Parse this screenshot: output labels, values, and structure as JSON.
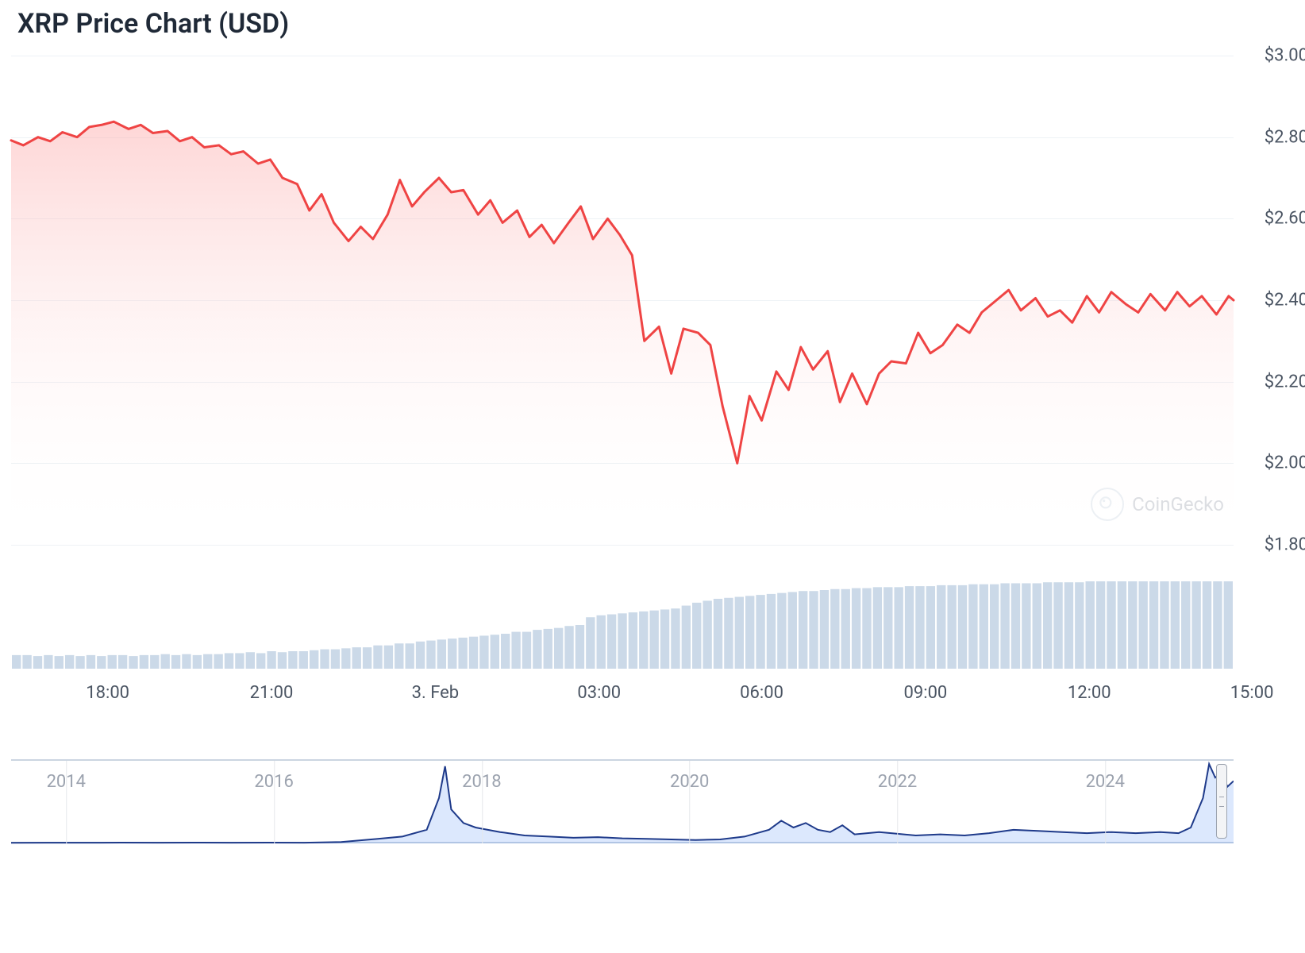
{
  "title": "XRP Price Chart (USD)",
  "watermark": "CoinGecko",
  "main_chart": {
    "type": "area",
    "line_color": "#ef4444",
    "line_width": 3,
    "fill_top_color": "rgba(252,165,165,0.45)",
    "fill_bottom_color": "rgba(255,255,255,0.0)",
    "background_color": "#ffffff",
    "grid_color": "#eef2f6",
    "ylim": [
      1.8,
      3.0
    ],
    "yticks": [
      1.8,
      2.0,
      2.2,
      2.4,
      2.6,
      2.8,
      3.0
    ],
    "ytick_labels": [
      "$1.80",
      "$2.00",
      "$2.20",
      "$2.40",
      "$2.60",
      "$2.80",
      "$3.00"
    ],
    "x_ticks_pct": [
      7.9,
      21.3,
      34.7,
      48.1,
      61.4,
      74.8,
      88.2,
      101.5
    ],
    "x_tick_labels": [
      "18:00",
      "21:00",
      "3. Feb",
      "03:00",
      "06:00",
      "09:00",
      "12:00",
      "15:00"
    ],
    "data": [
      [
        0.0,
        2.792
      ],
      [
        1.0,
        2.78
      ],
      [
        2.2,
        2.8
      ],
      [
        3.2,
        2.79
      ],
      [
        4.2,
        2.812
      ],
      [
        5.4,
        2.8
      ],
      [
        6.4,
        2.825
      ],
      [
        7.4,
        2.83
      ],
      [
        8.4,
        2.838
      ],
      [
        9.6,
        2.82
      ],
      [
        10.6,
        2.83
      ],
      [
        11.6,
        2.81
      ],
      [
        12.8,
        2.815
      ],
      [
        13.8,
        2.79
      ],
      [
        14.8,
        2.8
      ],
      [
        15.8,
        2.775
      ],
      [
        17.0,
        2.78
      ],
      [
        18.0,
        2.758
      ],
      [
        19.0,
        2.765
      ],
      [
        20.2,
        2.735
      ],
      [
        21.2,
        2.745
      ],
      [
        22.2,
        2.7
      ],
      [
        23.4,
        2.685
      ],
      [
        24.4,
        2.62
      ],
      [
        25.4,
        2.66
      ],
      [
        26.4,
        2.59
      ],
      [
        27.6,
        2.545
      ],
      [
        28.6,
        2.58
      ],
      [
        29.6,
        2.55
      ],
      [
        30.8,
        2.61
      ],
      [
        31.8,
        2.695
      ],
      [
        32.8,
        2.63
      ],
      [
        33.8,
        2.665
      ],
      [
        35.0,
        2.7
      ],
      [
        36.0,
        2.665
      ],
      [
        37.0,
        2.67
      ],
      [
        38.2,
        2.61
      ],
      [
        39.2,
        2.645
      ],
      [
        40.2,
        2.59
      ],
      [
        41.4,
        2.62
      ],
      [
        42.4,
        2.555
      ],
      [
        43.4,
        2.585
      ],
      [
        44.4,
        2.54
      ],
      [
        45.6,
        2.59
      ],
      [
        46.6,
        2.63
      ],
      [
        47.6,
        2.55
      ],
      [
        48.8,
        2.6
      ],
      [
        49.8,
        2.56
      ],
      [
        50.8,
        2.51
      ],
      [
        51.8,
        2.3
      ],
      [
        53.0,
        2.335
      ],
      [
        54.0,
        2.22
      ],
      [
        55.0,
        2.33
      ],
      [
        56.2,
        2.32
      ],
      [
        57.2,
        2.29
      ],
      [
        58.2,
        2.14
      ],
      [
        59.4,
        2.0
      ],
      [
        60.4,
        2.165
      ],
      [
        61.4,
        2.105
      ],
      [
        62.6,
        2.225
      ],
      [
        63.6,
        2.18
      ],
      [
        64.6,
        2.285
      ],
      [
        65.6,
        2.23
      ],
      [
        66.8,
        2.275
      ],
      [
        67.8,
        2.15
      ],
      [
        68.8,
        2.22
      ],
      [
        70.0,
        2.145
      ],
      [
        71.0,
        2.22
      ],
      [
        72.0,
        2.25
      ],
      [
        73.2,
        2.245
      ],
      [
        74.2,
        2.32
      ],
      [
        75.2,
        2.27
      ],
      [
        76.2,
        2.29
      ],
      [
        77.4,
        2.34
      ],
      [
        78.4,
        2.32
      ],
      [
        79.4,
        2.37
      ],
      [
        80.6,
        2.4
      ],
      [
        81.6,
        2.425
      ],
      [
        82.6,
        2.375
      ],
      [
        83.8,
        2.405
      ],
      [
        84.8,
        2.36
      ],
      [
        85.8,
        2.375
      ],
      [
        86.8,
        2.345
      ],
      [
        88.0,
        2.41
      ],
      [
        89.0,
        2.37
      ],
      [
        90.0,
        2.42
      ],
      [
        91.2,
        2.39
      ],
      [
        92.2,
        2.37
      ],
      [
        93.2,
        2.415
      ],
      [
        94.4,
        2.375
      ],
      [
        95.4,
        2.42
      ],
      [
        96.4,
        2.385
      ],
      [
        97.4,
        2.41
      ],
      [
        98.6,
        2.365
      ],
      [
        99.6,
        2.41
      ],
      [
        100.0,
        2.4
      ]
    ]
  },
  "volume_chart": {
    "type": "histogram",
    "bar_color": "#cbd9e8",
    "data": [
      14,
      14,
      13,
      14,
      13,
      14,
      13,
      14,
      13,
      14,
      14,
      13,
      14,
      14,
      15,
      14,
      15,
      14,
      15,
      15,
      16,
      16,
      17,
      16,
      18,
      17,
      18,
      18,
      19,
      20,
      20,
      21,
      22,
      22,
      24,
      24,
      26,
      26,
      28,
      29,
      30,
      31,
      32,
      33,
      34,
      35,
      36,
      38,
      38,
      40,
      41,
      42,
      44,
      45,
      53,
      55,
      56,
      57,
      58,
      59,
      60,
      61,
      62,
      65,
      68,
      70,
      72,
      73,
      74,
      75,
      76,
      77,
      78,
      79,
      80,
      80,
      81,
      82,
      82,
      83,
      83,
      84,
      84,
      84,
      85,
      85,
      85,
      86,
      86,
      86,
      87,
      87,
      87,
      88,
      88,
      88,
      88,
      89,
      89,
      89,
      89,
      90,
      90,
      90,
      90,
      90,
      90,
      90,
      90,
      90,
      90,
      90,
      90,
      90,
      90
    ]
  },
  "navigator": {
    "type": "area",
    "line_color": "#1e3a8a",
    "fill_color": "rgba(59,130,246,0.18)",
    "line_width": 2,
    "handle_pos_pct": 99.0,
    "year_ticks_pct": [
      4.5,
      21.5,
      38.5,
      55.5,
      72.5,
      89.5
    ],
    "year_labels": [
      "2014",
      "2016",
      "2018",
      "2020",
      "2022",
      "2024"
    ],
    "data": [
      [
        0,
        0.5
      ],
      [
        3,
        0.6
      ],
      [
        6,
        0.6
      ],
      [
        9,
        0.7
      ],
      [
        12,
        0.6
      ],
      [
        15,
        0.7
      ],
      [
        18,
        0.6
      ],
      [
        21,
        0.7
      ],
      [
        24,
        0.6
      ],
      [
        27,
        1.2
      ],
      [
        30,
        4.0
      ],
      [
        32,
        6.0
      ],
      [
        34,
        12.0
      ],
      [
        35,
        40.0
      ],
      [
        35.5,
        68.0
      ],
      [
        36,
        30.0
      ],
      [
        37,
        18.0
      ],
      [
        38,
        14.0
      ],
      [
        40,
        10.0
      ],
      [
        42,
        7.0
      ],
      [
        44,
        6.0
      ],
      [
        46,
        5.0
      ],
      [
        48,
        5.5
      ],
      [
        50,
        4.5
      ],
      [
        52,
        4.0
      ],
      [
        54,
        3.5
      ],
      [
        56,
        3.0
      ],
      [
        58,
        3.5
      ],
      [
        60,
        6.0
      ],
      [
        62,
        12.0
      ],
      [
        63,
        20.0
      ],
      [
        64,
        14.0
      ],
      [
        65,
        18.0
      ],
      [
        66,
        12.0
      ],
      [
        67,
        10.0
      ],
      [
        68,
        16.0
      ],
      [
        69,
        8.0
      ],
      [
        71,
        10.0
      ],
      [
        72,
        9.0
      ],
      [
        74,
        7.0
      ],
      [
        76,
        8.0
      ],
      [
        78,
        7.0
      ],
      [
        80,
        9.0
      ],
      [
        82,
        12.0
      ],
      [
        84,
        11.0
      ],
      [
        86,
        10.0
      ],
      [
        88,
        9.0
      ],
      [
        90,
        10.0
      ],
      [
        92,
        9.0
      ],
      [
        94,
        10.0
      ],
      [
        95.5,
        9.0
      ],
      [
        96.5,
        14.0
      ],
      [
        97.5,
        40.0
      ],
      [
        98,
        70.0
      ],
      [
        98.5,
        58.0
      ],
      [
        99,
        62.0
      ],
      [
        99.5,
        50.0
      ],
      [
        100,
        55.0
      ]
    ]
  }
}
